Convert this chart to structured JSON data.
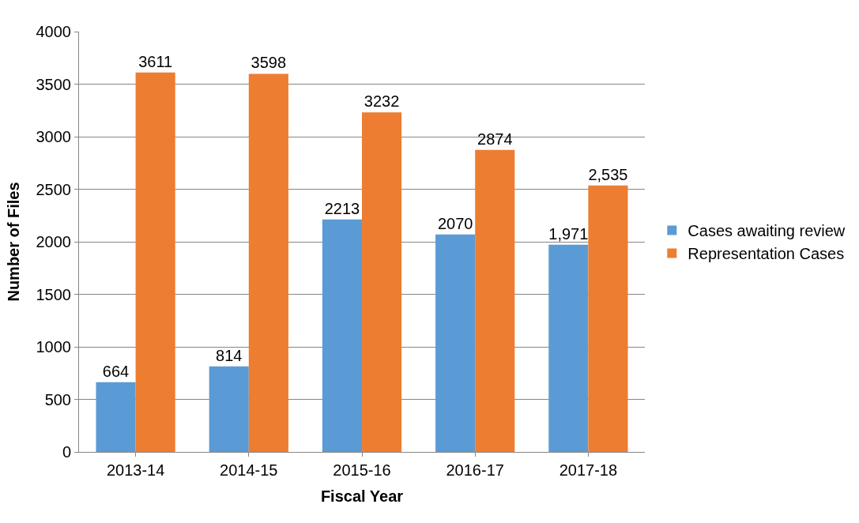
{
  "chart_data": {
    "type": "bar",
    "xlabel": "Fiscal Year",
    "ylabel": "Number of Files",
    "categories": [
      "2013-14",
      "2014-15",
      "2015-16",
      "2016-17",
      "2017-18"
    ],
    "series": [
      {
        "name": "Cases awaiting review",
        "color": "#5b9bd5",
        "values": [
          664,
          814,
          2213,
          2070,
          1971
        ],
        "value_labels": [
          "664",
          "814",
          "2213",
          "2070",
          "1,971"
        ]
      },
      {
        "name": "Representation Cases",
        "color": "#ed7d31",
        "values": [
          3611,
          3598,
          3232,
          2874,
          2535
        ],
        "value_labels": [
          "3611",
          "3598",
          "3232",
          "2874",
          "2,535"
        ]
      }
    ],
    "ylim": [
      0,
      4000
    ],
    "yticks": [
      0,
      500,
      1000,
      1500,
      2000,
      2500,
      3000,
      3500,
      4000
    ],
    "grid": "y",
    "legend": "right"
  }
}
